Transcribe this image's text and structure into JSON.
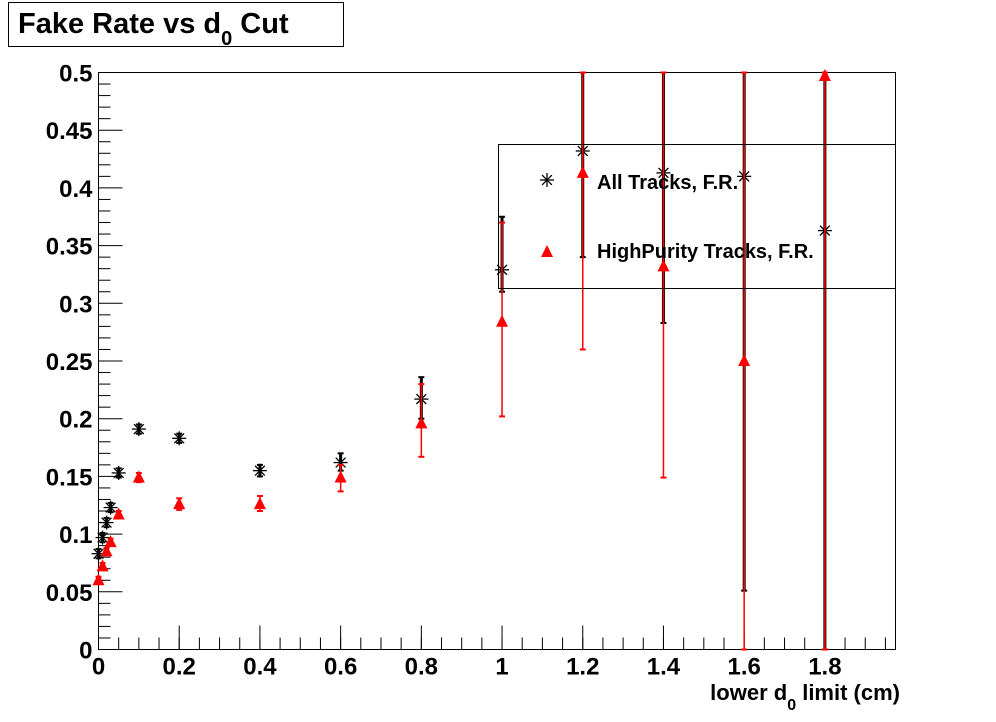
{
  "chart_data": {
    "type": "scatter",
    "title": "Fake Rate vs d",
    "title_sub": "0",
    "title_suffix": " Cut",
    "xlabel": "lower d",
    "xlabel_sub": "0",
    "xlabel_suffix": " limit (cm)",
    "ylabel": "",
    "xlim": [
      0,
      1.975
    ],
    "ylim": [
      0,
      0.5
    ],
    "x_ticks": [
      "0",
      "0.2",
      "0.4",
      "0.6",
      "0.8",
      "1",
      "1.2",
      "1.4",
      "1.6",
      "1.8"
    ],
    "y_ticks": [
      "0",
      "0.05",
      "0.1",
      "0.15",
      "0.2",
      "0.25",
      "0.3",
      "0.35",
      "0.4",
      "0.45",
      "0.5"
    ],
    "grid": false,
    "legend_position": "top-right",
    "series": [
      {
        "name": "All Tracks, F.R.",
        "marker": "asterisk",
        "color": "#000000",
        "x": [
          0,
          0.01,
          0.02,
          0.03,
          0.05,
          0.1,
          0.2,
          0.4,
          0.6,
          0.8,
          1.0,
          1.2,
          1.4,
          1.6,
          1.8
        ],
        "y": [
          0.083,
          0.097,
          0.11,
          0.123,
          0.153,
          0.191,
          0.183,
          0.155,
          0.162,
          0.217,
          0.329,
          0.432,
          0.413,
          0.41,
          0.363
        ],
        "y_low": [
          0.079,
          0.093,
          0.106,
          0.119,
          0.149,
          0.187,
          0.179,
          0.15,
          0.155,
          0.2,
          0.31,
          0.34,
          0.283,
          0.051,
          0.0
        ],
        "y_high": [
          0.087,
          0.101,
          0.114,
          0.127,
          0.157,
          0.195,
          0.187,
          0.16,
          0.17,
          0.236,
          0.375,
          0.5,
          0.5,
          0.5,
          0.5
        ]
      },
      {
        "name": "HighPurity Tracks, F.R.",
        "marker": "triangle",
        "color": "#ff0000",
        "x": [
          0,
          0.01,
          0.02,
          0.03,
          0.05,
          0.1,
          0.2,
          0.4,
          0.6,
          0.8,
          1.0,
          1.2,
          1.4,
          1.6,
          1.8
        ],
        "y": [
          0.06,
          0.072,
          0.085,
          0.093,
          0.117,
          0.149,
          0.126,
          0.126,
          0.149,
          0.196,
          0.284,
          0.413,
          0.332,
          0.25,
          0.497
        ],
        "y_low": [
          0.057,
          0.069,
          0.082,
          0.09,
          0.114,
          0.145,
          0.121,
          0.12,
          0.137,
          0.167,
          0.202,
          0.26,
          0.149,
          0.0,
          0.0
        ],
        "y_high": [
          0.063,
          0.075,
          0.088,
          0.096,
          0.12,
          0.153,
          0.131,
          0.133,
          0.16,
          0.23,
          0.37,
          0.5,
          0.5,
          0.5,
          0.5
        ]
      }
    ]
  }
}
